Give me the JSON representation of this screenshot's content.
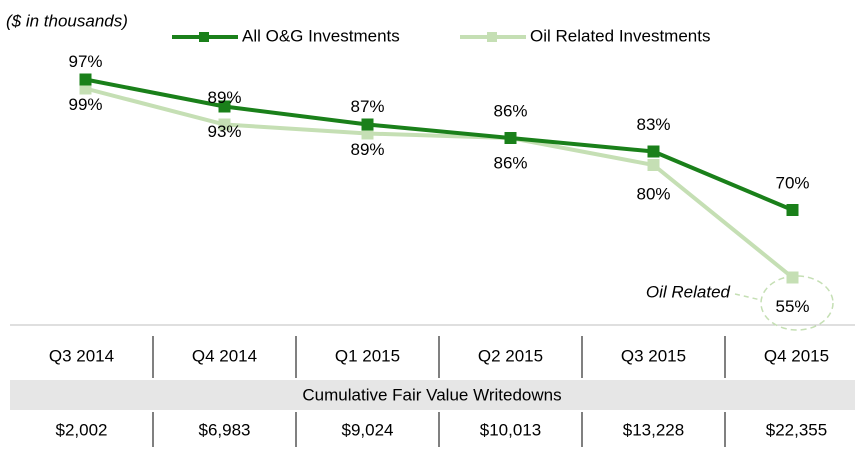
{
  "chart_data": {
    "type": "line",
    "subtitle": "($ in thousands)",
    "categories": [
      "Q3 2014",
      "Q4 2014",
      "Q1 2015",
      "Q2 2015",
      "Q3 2015",
      "Q4 2015"
    ],
    "series": [
      {
        "name": "All O&G Investments",
        "color": "#1a801a",
        "values": [
          99,
          93,
          89,
          86,
          83,
          70
        ],
        "value_labels": [
          "99%",
          "93%",
          "89%",
          "86%",
          "83%",
          "70%"
        ]
      },
      {
        "name": "Oil Related Investments",
        "color": "#c5dfb4",
        "values": [
          97,
          89,
          87,
          86,
          80,
          55
        ],
        "value_labels": [
          "97%",
          "89%",
          "87%",
          "86%",
          "80%",
          "55%"
        ]
      }
    ],
    "ylim": [
      50,
      100
    ],
    "annotation": "Oil Related",
    "table": {
      "header": "Cumulative Fair Value Writedowns",
      "values": [
        "$2,002",
        "$6,983",
        "$9,024",
        "$10,013",
        "$13,228",
        "$22,355"
      ]
    }
  }
}
